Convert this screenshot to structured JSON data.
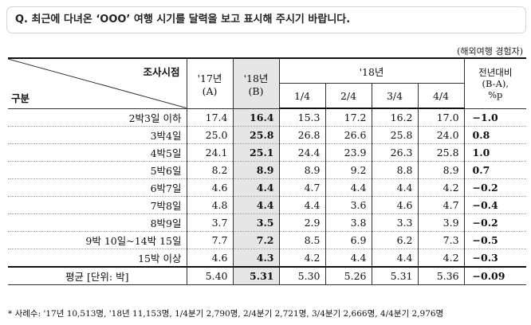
{
  "question": "Q. 최근에 다녀온 ‘OOO’ 여행 시기를 달력을 보고 표시해 주시기 바랍니다.",
  "unit_note": "(해외여행 경험자)",
  "header": {
    "survey_time": "조사시점",
    "category": "구분",
    "y17": "'17년",
    "y17_sub": "(A)",
    "y18": "'18년",
    "y18_sub": "(B)",
    "y18_group": "'18년",
    "quarters": [
      "1/4",
      "2/4",
      "3/4",
      "4/4"
    ],
    "change_l1": "전년대비",
    "change_l2": "(B-A),",
    "change_l3": "%p"
  },
  "rows": [
    {
      "label": "2박3일 이하",
      "y17": "17.4",
      "y18": "16.4",
      "q1": "15.3",
      "q2": "17.2",
      "q3": "16.2",
      "q4": "17.0",
      "change": "−1.0"
    },
    {
      "label": "3박4일",
      "y17": "25.0",
      "y18": "25.8",
      "q1": "26.8",
      "q2": "26.6",
      "q3": "25.8",
      "q4": "24.0",
      "change": "0.8"
    },
    {
      "label": "4박5일",
      "y17": "24.1",
      "y18": "25.1",
      "q1": "24.4",
      "q2": "23.9",
      "q3": "26.3",
      "q4": "25.8",
      "change": "1.0"
    },
    {
      "label": "5박6일",
      "y17": "8.2",
      "y18": "8.9",
      "q1": "8.9",
      "q2": "9.2",
      "q3": "8.8",
      "q4": "8.9",
      "change": "0.7"
    },
    {
      "label": "6박7일",
      "y17": "4.6",
      "y18": "4.4",
      "q1": "4.7",
      "q2": "4.4",
      "q3": "4.4",
      "q4": "4.2",
      "change": "−0.2"
    },
    {
      "label": "7박8일",
      "y17": "4.8",
      "y18": "4.4",
      "q1": "4.4",
      "q2": "3.6",
      "q3": "4.6",
      "q4": "4.7",
      "change": "−0.4"
    },
    {
      "label": "8박9일",
      "y17": "3.7",
      "y18": "3.5",
      "q1": "2.9",
      "q2": "3.8",
      "q3": "3.3",
      "q4": "3.9",
      "change": "−0.2"
    },
    {
      "label": "9박 10일~14박 15일",
      "y17": "7.7",
      "y18": "7.2",
      "q1": "8.5",
      "q2": "6.9",
      "q3": "6.2",
      "q4": "7.3",
      "change": "−0.5"
    },
    {
      "label": "15박 이상",
      "y17": "4.6",
      "y18": "4.3",
      "q1": "4.2",
      "q2": "4.4",
      "q3": "4.4",
      "q4": "4.2",
      "change": "−0.3"
    }
  ],
  "average": {
    "label": "평균 [단위: 박]",
    "y17": "5.40",
    "y18": "5.31",
    "q1": "5.30",
    "q2": "5.26",
    "q3": "5.31",
    "q4": "5.36",
    "change": "−0.09"
  },
  "footnote": "* 사례수: '17년 10,513명, '18년 11,153명, 1/4분기 2,790명, 2/4분기 2,721명, 3/4분기 2,666명, 4/4분기 2,976명"
}
